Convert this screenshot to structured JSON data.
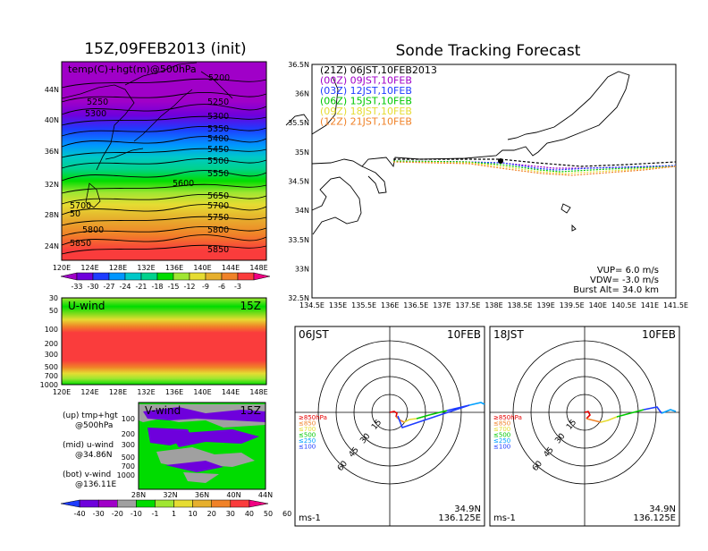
{
  "left": {
    "title": "15Z,09FEB2013 (init)",
    "panel_label": "temp(C)+hgt(m)@500hPa",
    "lat_ticks": [
      "44N",
      "40N",
      "36N",
      "32N",
      "28N",
      "24N"
    ],
    "lon_ticks": [
      "120E",
      "124E",
      "128E",
      "132E",
      "136E",
      "140E",
      "144E",
      "148E"
    ],
    "height_contours": [
      "5200",
      "5250",
      "5250",
      "5300",
      "5300",
      "5350",
      "5400",
      "5450",
      "5500",
      "5550",
      "5600",
      "5650",
      "5700",
      "5700",
      "5750",
      "5800",
      "5800",
      "5850",
      "5850",
      "50"
    ],
    "temp_colorbar": {
      "labels": [
        "-33",
        "-30",
        "-27",
        "-24",
        "-21",
        "-18",
        "-15",
        "-12",
        "-9",
        "-6",
        "-3"
      ],
      "colors": [
        "#a000c8",
        "#6e00dc",
        "#1e3cff",
        "#0096ff",
        "#00c8c8",
        "#00d28c",
        "#00dc00",
        "#a0e632",
        "#e6dc32",
        "#e6af2d",
        "#f08228",
        "#fa3c3c",
        "#f00082"
      ]
    },
    "u_panel": {
      "label": "U-wind",
      "time": "15Z",
      "p_ticks": [
        "30",
        "50",
        "100",
        "200",
        "300",
        "500",
        "700",
        "1000"
      ]
    },
    "v_panel": {
      "label": "V-wind",
      "time": "15Z",
      "p_ticks": [
        "100",
        "200",
        "300",
        "500",
        "700",
        "1000"
      ],
      "lat_ticks": [
        "28N",
        "32N",
        "36N",
        "40N",
        "44N"
      ]
    },
    "wind_colorbar": {
      "labels": [
        "-40",
        "-30",
        "-20",
        "-10",
        "-1",
        "1",
        "10",
        "20",
        "30",
        "40",
        "50",
        "60"
      ],
      "colors": [
        "#1e3cff",
        "#6e00dc",
        "#a000c8",
        "#a0a0a0",
        "#00dc00",
        "#a0e632",
        "#e6dc32",
        "#e6af2d",
        "#f08228",
        "#fa3c3c",
        "#f00082"
      ]
    },
    "legend": [
      {
        "line1": "(up) tmp+hgt",
        "line2": "@500hPa"
      },
      {
        "line1": "(mid) u-wind",
        "line2": "@34.86N"
      },
      {
        "line1": "(bot) v-wind",
        "line2": "@136.11E"
      }
    ]
  },
  "right": {
    "title": "Sonde Tracking Forecast",
    "lat_ticks": [
      "36.5N",
      "36N",
      "35.5N",
      "35N",
      "34.5N",
      "34N",
      "33.5N",
      "33N",
      "32.5N"
    ],
    "lon_ticks": [
      "134.5E",
      "135E",
      "135.5E",
      "136E",
      "136.5E",
      "137E",
      "137.5E",
      "138E",
      "138.5E",
      "139E",
      "139.5E",
      "140E",
      "140.5E",
      "141E",
      "141.5E"
    ],
    "launches": [
      {
        "code": "(21Z)",
        "label": "06JST,10FEB2013",
        "color": "#000000"
      },
      {
        "code": "(00Z)",
        "label": "09JST,10FEB",
        "color": "#a000c8"
      },
      {
        "code": "(03Z)",
        "label": "12JST,10FEB",
        "color": "#1e3cff"
      },
      {
        "code": "(06Z)",
        "label": "15JST,10FEB",
        "color": "#00c800"
      },
      {
        "code": "(09Z)",
        "label": "18JST,10FEB",
        "color": "#e6dc32"
      },
      {
        "code": "(12Z)",
        "label": "21JST,10FEB",
        "color": "#f08228"
      }
    ],
    "params": [
      "VUP= 6.0 m/s",
      "VDW= -3.0 m/s",
      "Burst Alt= 34.0 km"
    ]
  },
  "hodographs": [
    {
      "time": "06JST",
      "date": "10FEB",
      "unit": "ms-1",
      "lat": "34.9N",
      "lon": "136.125E",
      "ring_labels": [
        "15",
        "30",
        "45",
        "60"
      ],
      "levels": [
        {
          "label": "≥850hPa",
          "color": "#e60000"
        },
        {
          "label": "≤850",
          "color": "#f08228"
        },
        {
          "label": "≤700",
          "color": "#e6dc32"
        },
        {
          "label": "≤500",
          "color": "#00c800"
        },
        {
          "label": "≤250",
          "color": "#00a0ff"
        },
        {
          "label": "≤100",
          "color": "#1e3cff"
        }
      ]
    },
    {
      "time": "18JST",
      "date": "10FEB",
      "unit": "ms-1",
      "lat": "34.9N",
      "lon": "136.125E",
      "ring_labels": [
        "15",
        "30",
        "45",
        "60"
      ],
      "levels": [
        {
          "label": "≥850hPa",
          "color": "#e60000"
        },
        {
          "label": "≤850",
          "color": "#f08228"
        },
        {
          "label": "≤700",
          "color": "#e6dc32"
        },
        {
          "label": "≤500",
          "color": "#00c800"
        },
        {
          "label": "≤250",
          "color": "#00a0ff"
        },
        {
          "label": "≤100",
          "color": "#1e3cff"
        }
      ]
    }
  ]
}
